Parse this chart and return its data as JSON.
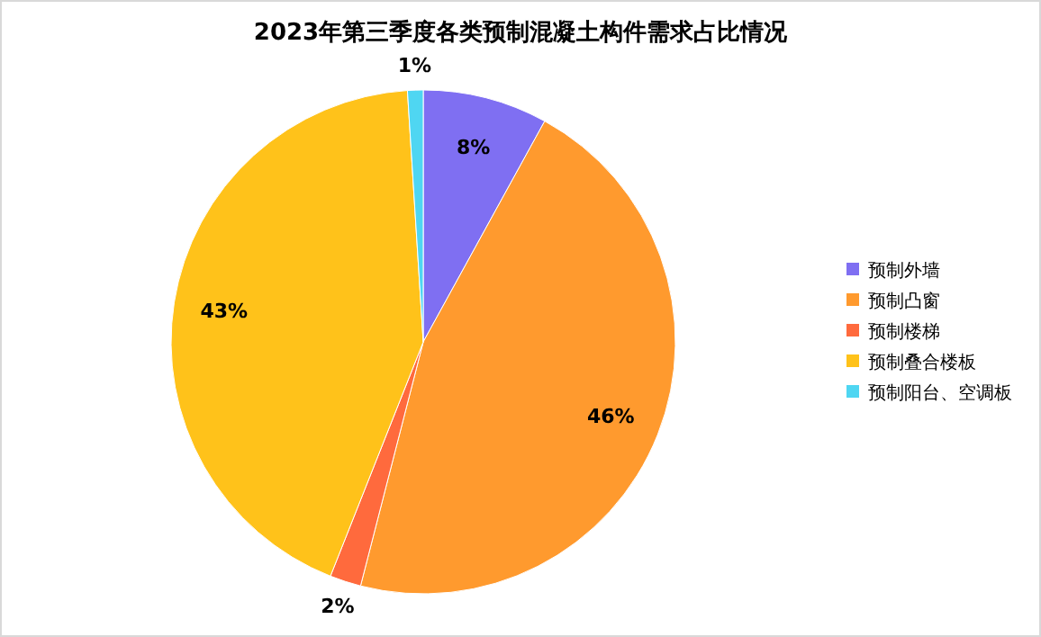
{
  "chart_data": {
    "type": "pie",
    "title": "2023年第三季度各类预制混凝土构件需求占比情况",
    "categories": [
      "预制外墙",
      "预制凸窗",
      "预制楼梯",
      "预制叠合楼板",
      "预制阳台、空调板"
    ],
    "values": [
      8,
      46,
      2,
      43,
      1
    ],
    "colors": [
      "#7f6ff2",
      "#ff9a2e",
      "#ff6a3d",
      "#ffc21a",
      "#4fd6f2"
    ],
    "value_labels": [
      "8%",
      "46%",
      "2%",
      "43%",
      "1%"
    ],
    "legend": "right"
  }
}
